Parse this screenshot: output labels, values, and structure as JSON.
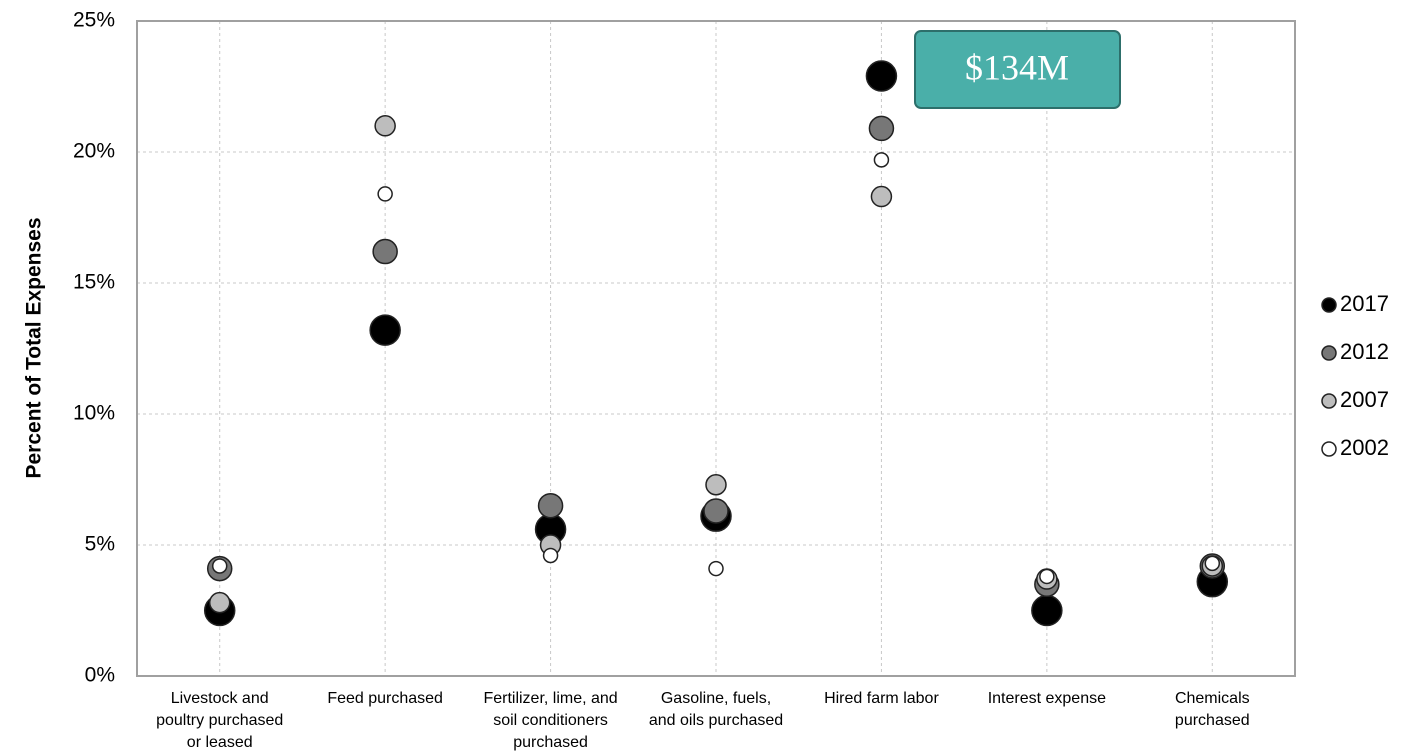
{
  "chart_data": {
    "type": "scatter",
    "y_label": "Percent of Total Expenses",
    "annotation": "$134M",
    "categories": [
      "Livestock and\npoultry purchased\nor leased",
      "Feed purchased",
      "Fertilizer, lime, and\nsoil conditioners\npurchased",
      "Gasoline, fuels,\nand oils purchased",
      "Hired farm labor",
      "Interest expense",
      "Chemicals\npurchased"
    ],
    "series": [
      {
        "name": "2017",
        "color": "#000000",
        "values": [
          2.5,
          13.2,
          5.6,
          6.1,
          22.9,
          2.5,
          3.6
        ]
      },
      {
        "name": "2012",
        "color": "#777777",
        "values": [
          4.1,
          16.2,
          6.5,
          6.3,
          20.9,
          3.5,
          4.2
        ]
      },
      {
        "name": "2007",
        "color": "#bdbdbd",
        "values": [
          2.8,
          21.0,
          5.0,
          7.3,
          18.3,
          3.7,
          4.2
        ]
      },
      {
        "name": "2002",
        "color": "#ffffff",
        "values": [
          4.2,
          18.4,
          4.6,
          4.1,
          19.7,
          3.8,
          4.3
        ]
      }
    ],
    "ylim": [
      0,
      25
    ],
    "yticks": [
      {
        "value": 0,
        "label": "0%"
      },
      {
        "value": 5,
        "label": "5%"
      },
      {
        "value": 10,
        "label": "10%"
      },
      {
        "value": 15,
        "label": "15%"
      },
      {
        "value": 20,
        "label": "20%"
      },
      {
        "value": 25,
        "label": "25%"
      }
    ],
    "grid": true
  }
}
